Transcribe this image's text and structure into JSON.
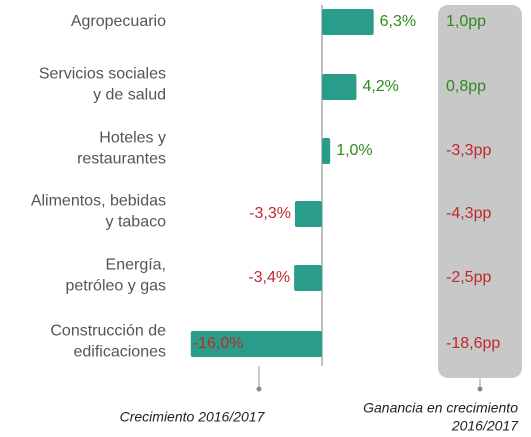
{
  "chart_data": {
    "type": "bar",
    "orientation": "horizontal",
    "categories": [
      [
        "Agropecuario"
      ],
      [
        "Servicios sociales",
        "y de salud"
      ],
      [
        "Hoteles y",
        "restaurantes"
      ],
      [
        "Alimentos, bebidas",
        "y tabaco"
      ],
      [
        "Energía,",
        "petróleo y gas"
      ],
      [
        "Construcción de",
        "edificaciones"
      ]
    ],
    "values": [
      6.3,
      4.2,
      1.0,
      -3.3,
      -3.4,
      -16.0
    ],
    "value_labels": [
      "6,3%",
      "4,2%",
      "1,0%",
      "-3,3%",
      "-3,4%",
      "-16,0%"
    ],
    "color": "#2a9d8a",
    "gain_values": [
      1.0,
      0.8,
      -3.3,
      -4.3,
      -2.5,
      -18.6
    ],
    "gain_labels": [
      "1,0pp",
      "0,8pp",
      "-3,3pp",
      "-4,3pp",
      "-2,5pp",
      "-18,6pp"
    ],
    "positive_color": "#2e8b1e",
    "negative_color": "#c0282d",
    "xlabel": [
      "Crecimiento 2016/2017"
    ],
    "gain_label": [
      "Ganancia en crecimiento",
      "2016/2017"
    ]
  }
}
